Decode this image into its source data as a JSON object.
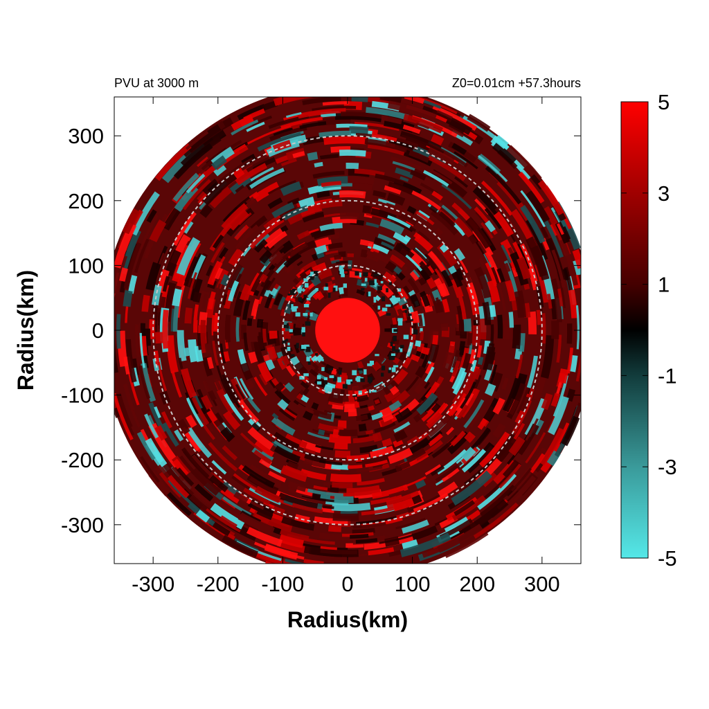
{
  "chart_data": {
    "type": "heatmap",
    "title_left": "PVU at  3000 m",
    "title_right": "Z0=0.01cm  +57.3hours",
    "xlabel": "Radius(km)",
    "ylabel": "Radius(km)",
    "xlim": [
      -360,
      360
    ],
    "ylim": [
      -360,
      360
    ],
    "xticks": [
      -300,
      -200,
      -100,
      0,
      100,
      200,
      300
    ],
    "yticks": [
      300,
      200,
      100,
      0,
      -100,
      -200,
      -300
    ],
    "domain_radius_km": 380,
    "reference_circles_km": [
      100,
      200,
      300
    ],
    "core": {
      "value": 5,
      "radius_km": 50
    },
    "colorbar": {
      "min": -5,
      "max": 5,
      "ticks": [
        5,
        3,
        1,
        -1,
        -3,
        -5
      ],
      "stops": [
        {
          "value": -5,
          "color": "#55e8e8"
        },
        {
          "value": -3,
          "color": "#3a9a9a"
        },
        {
          "value": -1,
          "color": "#123c3c"
        },
        {
          "value": 0,
          "color": "#000000"
        },
        {
          "value": 1,
          "color": "#450000"
        },
        {
          "value": 3,
          "color": "#a00000"
        },
        {
          "value": 5,
          "color": "#ff0000"
        }
      ]
    },
    "colors": {
      "field_background": "#5a0606",
      "reference_circle": "#c8c8c8",
      "positive_patch": "#ff1010",
      "negative_patch": "#4cc8cc"
    },
    "grid": false
  }
}
